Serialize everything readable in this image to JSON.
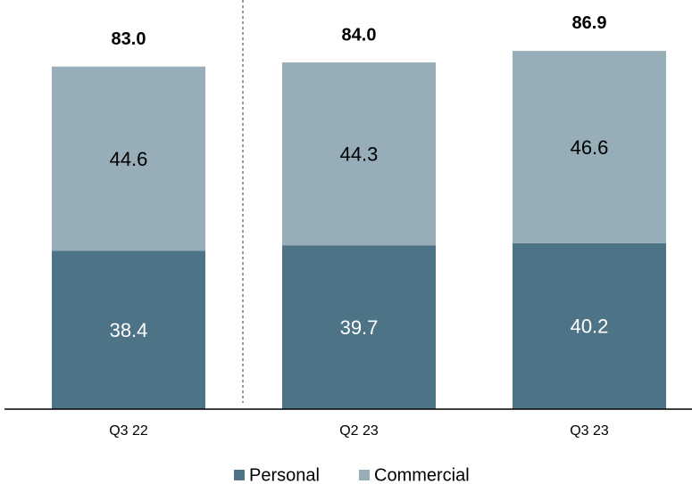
{
  "chart_data": {
    "type": "stacked_bar",
    "categories": [
      "Q3 22",
      "Q2 23",
      "Q3 23"
    ],
    "series": [
      {
        "name": "Personal",
        "color": "#4d7386",
        "values": [
          38.4,
          39.7,
          40.2
        ]
      },
      {
        "name": "Commercial",
        "color": "#97adb8",
        "values": [
          44.6,
          44.3,
          46.6
        ]
      }
    ],
    "totals": [
      83.0,
      84.0,
      86.9
    ],
    "total_labels": [
      "83.0",
      "84.0",
      "86.9"
    ],
    "ylim": [
      0,
      100
    ]
  }
}
